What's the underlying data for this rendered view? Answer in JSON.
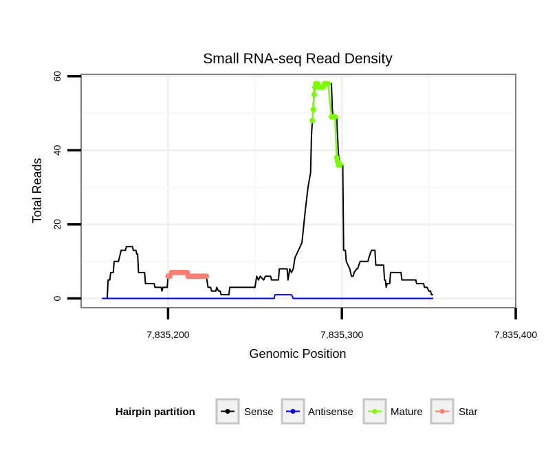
{
  "chart_data": {
    "type": "line",
    "title": "Small RNA-seq Read Density",
    "xlabel": "Genomic Position",
    "ylabel": "Total Reads",
    "xlim": [
      7835150,
      7835400
    ],
    "ylim": [
      -2.5,
      60.5
    ],
    "x_ticks": [
      7835200,
      7835300,
      7835400
    ],
    "x_tick_labels": [
      "7,835,200",
      "7,835,300",
      "7,835,400"
    ],
    "y_ticks": [
      0,
      20,
      40,
      60
    ],
    "y_tick_labels": [
      "0",
      "20",
      "40",
      "60"
    ],
    "grid": true,
    "legend": {
      "title": "Hairpin partition",
      "position": "bottom",
      "entries": [
        "Sense",
        "Antisense",
        "Mature",
        "Star"
      ]
    },
    "series": [
      {
        "name": "Sense",
        "color": "#000000",
        "style": "line",
        "points": [
          [
            7835162,
            0
          ],
          [
            7835165,
            0
          ],
          [
            7835165.5,
            5
          ],
          [
            7835166.5,
            5
          ],
          [
            7835167,
            7
          ],
          [
            7835168.5,
            7
          ],
          [
            7835169,
            10
          ],
          [
            7835171.5,
            10
          ],
          [
            7835173,
            13
          ],
          [
            7835175.5,
            13
          ],
          [
            7835176,
            14
          ],
          [
            7835179.5,
            14
          ],
          [
            7835180,
            13
          ],
          [
            7835181.5,
            13
          ],
          [
            7835182,
            12
          ],
          [
            7835182.5,
            12
          ],
          [
            7835183,
            7
          ],
          [
            7835186.5,
            7
          ],
          [
            7835187,
            4
          ],
          [
            7835192,
            4
          ],
          [
            7835192.5,
            3
          ],
          [
            7835196,
            3
          ],
          [
            7835196.5,
            2
          ],
          [
            7835197,
            3
          ],
          [
            7835199.5,
            3
          ],
          [
            7835200,
            6
          ],
          [
            7835201,
            6
          ],
          [
            7835202,
            7
          ],
          [
            7835211,
            7
          ],
          [
            7835211.5,
            6
          ],
          [
            7835222,
            6
          ],
          [
            7835223,
            3
          ],
          [
            7835224.5,
            3
          ],
          [
            7835225,
            2
          ],
          [
            7835227.5,
            2
          ],
          [
            7835228,
            3
          ],
          [
            7835229,
            2
          ],
          [
            7835230,
            2
          ],
          [
            7835230.5,
            1
          ],
          [
            7835235,
            1
          ],
          [
            7835235.5,
            3
          ],
          [
            7835250,
            3
          ],
          [
            7835251,
            6
          ],
          [
            7835252,
            5
          ],
          [
            7835253,
            6
          ],
          [
            7835255,
            5
          ],
          [
            7835256,
            6
          ],
          [
            7835259,
            6
          ],
          [
            7835259.5,
            5
          ],
          [
            7835263.5,
            5
          ],
          [
            7835264,
            8
          ],
          [
            7835268.5,
            8
          ],
          [
            7835269,
            5
          ],
          [
            7835270,
            8
          ],
          [
            7835271,
            7
          ],
          [
            7835272,
            8
          ],
          [
            7835273,
            11
          ],
          [
            7835277,
            15
          ],
          [
            7835279,
            24
          ],
          [
            7835280.5,
            30
          ],
          [
            7835282,
            34
          ],
          [
            7835282.5,
            44
          ],
          [
            7835283,
            48
          ],
          [
            7835284,
            56
          ],
          [
            7835285,
            58
          ],
          [
            7835287,
            58
          ],
          [
            7835288,
            57
          ],
          [
            7835290,
            57
          ],
          [
            7835291,
            58
          ],
          [
            7835294,
            58
          ],
          [
            7835294.5,
            51
          ],
          [
            7835295,
            49
          ],
          [
            7835297,
            49
          ],
          [
            7835298,
            39
          ],
          [
            7835299,
            36
          ],
          [
            7835300.5,
            36
          ],
          [
            7835301,
            13
          ],
          [
            7835302,
            13
          ],
          [
            7835302.5,
            10
          ],
          [
            7835304.5,
            8
          ],
          [
            7835305.5,
            6
          ],
          [
            7835306.5,
            6
          ],
          [
            7835307,
            7
          ],
          [
            7835308.5,
            8
          ],
          [
            7835309,
            8
          ],
          [
            7835310.5,
            10
          ],
          [
            7835315,
            10
          ],
          [
            7835315.5,
            11
          ],
          [
            7835317,
            13
          ],
          [
            7835319,
            13
          ],
          [
            7835319.5,
            9
          ],
          [
            7835324,
            9
          ],
          [
            7835324.5,
            5
          ],
          [
            7835325,
            5
          ],
          [
            7835325.5,
            3
          ],
          [
            7835326,
            4
          ],
          [
            7835327.5,
            4
          ],
          [
            7835328,
            7
          ],
          [
            7835334,
            7
          ],
          [
            7835334.5,
            5
          ],
          [
            7835342.5,
            5
          ],
          [
            7835343,
            4
          ],
          [
            7835347,
            4
          ],
          [
            7835347.5,
            3
          ],
          [
            7835349,
            3
          ],
          [
            7835350,
            2
          ],
          [
            7835351,
            2
          ],
          [
            7835351.5,
            1
          ],
          [
            7835352.5,
            1
          ]
        ]
      },
      {
        "name": "Antisense",
        "color": "#0000ff",
        "style": "line",
        "points": [
          [
            7835162,
            0
          ],
          [
            7835261,
            0
          ],
          [
            7835261.5,
            1
          ],
          [
            7835271,
            1
          ],
          [
            7835272,
            0
          ],
          [
            7835352.5,
            0
          ]
        ]
      },
      {
        "name": "Mature",
        "color": "#7cfc00",
        "style": "points",
        "points": [
          [
            7835283,
            48
          ],
          [
            7835283.5,
            51
          ],
          [
            7835284,
            55
          ],
          [
            7835284.5,
            57
          ],
          [
            7835285,
            58
          ],
          [
            7835286,
            58
          ],
          [
            7835287,
            57
          ],
          [
            7835288,
            57
          ],
          [
            7835289,
            57
          ],
          [
            7835290,
            58
          ],
          [
            7835291,
            58
          ],
          [
            7835292,
            58
          ],
          [
            7835294,
            49
          ],
          [
            7835295,
            49
          ],
          [
            7835296,
            49
          ],
          [
            7835297,
            38
          ],
          [
            7835297.5,
            37
          ],
          [
            7835298,
            36
          ],
          [
            7835299,
            36
          ]
        ]
      },
      {
        "name": "Star",
        "color": "#fa8072",
        "style": "points",
        "points": [
          [
            7835200,
            6
          ],
          [
            7835201,
            6
          ],
          [
            7835202,
            7
          ],
          [
            7835203,
            7
          ],
          [
            7835204,
            7
          ],
          [
            7835205,
            7
          ],
          [
            7835206,
            7
          ],
          [
            7835207,
            7
          ],
          [
            7835208,
            7
          ],
          [
            7835209,
            7
          ],
          [
            7835210,
            7
          ],
          [
            7835211,
            7
          ],
          [
            7835211.5,
            6
          ],
          [
            7835212,
            6
          ],
          [
            7835213,
            6
          ],
          [
            7835214,
            6
          ],
          [
            7835215,
            6
          ],
          [
            7835216,
            6
          ],
          [
            7835217,
            6
          ],
          [
            7835218,
            6
          ],
          [
            7835219,
            6
          ],
          [
            7835220,
            6
          ],
          [
            7835221,
            6
          ],
          [
            7835222,
            6
          ]
        ]
      }
    ]
  }
}
